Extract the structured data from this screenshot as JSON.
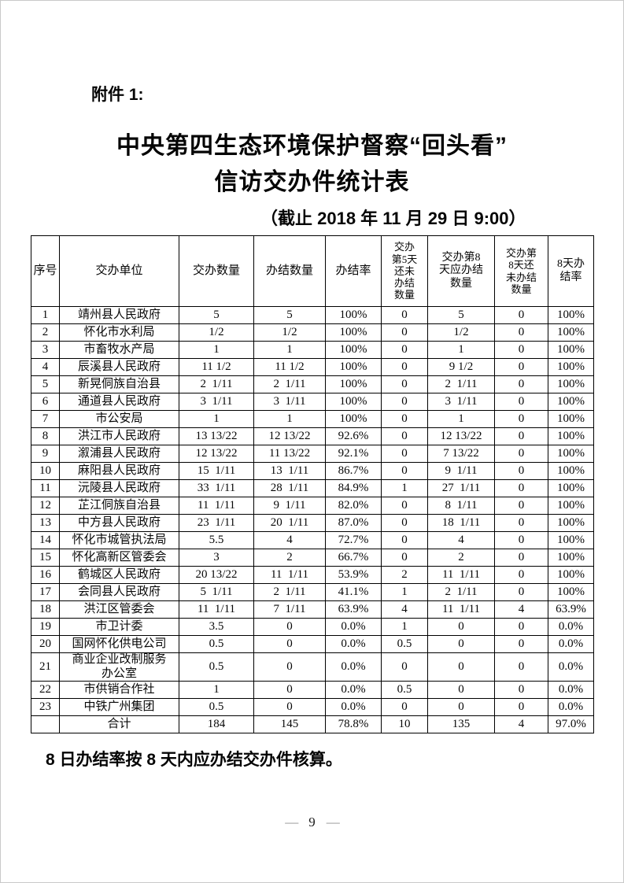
{
  "page": {
    "attachment_label": "附件 1:",
    "title_line1": "中央第四生态环境保护督察“回头看”",
    "title_line2": "信访交办件统计表",
    "subtitle": "（截止 2018 年 11 月 29 日 9:00）",
    "footnote": "8 日办结率按 8 天内应办结交办件核算。",
    "page_number": "9",
    "page_number_dash": "—"
  },
  "table": {
    "headers": [
      "序号",
      "交办单位",
      "交办数量",
      "办结数量",
      "办结率",
      "交办\n第5天\n还未\n办结\n数量",
      "交办第8\n天应办结\n数量",
      "交办第\n8天还\n未办结\n数量",
      "8天办\n结率"
    ],
    "rows": [
      [
        "1",
        "靖州县人民政府",
        "5",
        "5",
        "100%",
        "0",
        "5",
        "0",
        "100%"
      ],
      [
        "2",
        "怀化市水利局",
        "1/2",
        "1/2",
        "100%",
        "0",
        "1/2",
        "0",
        "100%"
      ],
      [
        "3",
        "市畜牧水产局",
        "1",
        "1",
        "100%",
        "0",
        "1",
        "0",
        "100%"
      ],
      [
        "4",
        "辰溪县人民政府",
        "11 1/2",
        "11 1/2",
        "100%",
        "0",
        "9 1/2",
        "0",
        "100%"
      ],
      [
        "5",
        "新晃侗族自治县",
        "2  1/11",
        "2  1/11",
        "100%",
        "0",
        "2  1/11",
        "0",
        "100%"
      ],
      [
        "6",
        "通道县人民政府",
        "3  1/11",
        "3  1/11",
        "100%",
        "0",
        "3  1/11",
        "0",
        "100%"
      ],
      [
        "7",
        "市公安局",
        "1",
        "1",
        "100%",
        "0",
        "1",
        "0",
        "100%"
      ],
      [
        "8",
        "洪江市人民政府",
        "13 13/22",
        "12 13/22",
        "92.6%",
        "0",
        "12 13/22",
        "0",
        "100%"
      ],
      [
        "9",
        "溆浦县人民政府",
        "12 13/22",
        "11 13/22",
        "92.1%",
        "0",
        "7 13/22",
        "0",
        "100%"
      ],
      [
        "10",
        "麻阳县人民政府",
        "15  1/11",
        "13  1/11",
        "86.7%",
        "0",
        "9  1/11",
        "0",
        "100%"
      ],
      [
        "11",
        "沅陵县人民政府",
        "33  1/11",
        "28  1/11",
        "84.9%",
        "1",
        "27  1/11",
        "0",
        "100%"
      ],
      [
        "12",
        "芷江侗族自治县",
        "11  1/11",
        "9  1/11",
        "82.0%",
        "0",
        "8  1/11",
        "0",
        "100%"
      ],
      [
        "13",
        "中方县人民政府",
        "23  1/11",
        "20  1/11",
        "87.0%",
        "0",
        "18  1/11",
        "0",
        "100%"
      ],
      [
        "14",
        "怀化市城管执法局",
        "5.5",
        "4",
        "72.7%",
        "0",
        "4",
        "0",
        "100%"
      ],
      [
        "15",
        "怀化高新区管委会",
        "3",
        "2",
        "66.7%",
        "0",
        "2",
        "0",
        "100%"
      ],
      [
        "16",
        "鹤城区人民政府",
        "20 13/22",
        "11  1/11",
        "53.9%",
        "2",
        "11  1/11",
        "0",
        "100%"
      ],
      [
        "17",
        "会同县人民政府",
        "5  1/11",
        "2  1/11",
        "41.1%",
        "1",
        "2  1/11",
        "0",
        "100%"
      ],
      [
        "18",
        "洪江区管委会",
        "11  1/11",
        "7  1/11",
        "63.9%",
        "4",
        "11  1/11",
        "4",
        "63.9%"
      ],
      [
        "19",
        "市卫计委",
        "3.5",
        "0",
        "0.0%",
        "1",
        "0",
        "0",
        "0.0%"
      ],
      [
        "20",
        "国网怀化供电公司",
        "0.5",
        "0",
        "0.0%",
        "0.5",
        "0",
        "0",
        "0.0%"
      ],
      [
        "21",
        "商业企业改制服务\n办公室",
        "0.5",
        "0",
        "0.0%",
        "0",
        "0",
        "0",
        "0.0%"
      ],
      [
        "22",
        "市供销合作社",
        "1",
        "0",
        "0.0%",
        "0.5",
        "0",
        "0",
        "0.0%"
      ],
      [
        "23",
        "中铁广州集团",
        "0.5",
        "0",
        "0.0%",
        "0",
        "0",
        "0",
        "0.0%"
      ]
    ],
    "total_row": [
      "",
      "合计",
      "184",
      "145",
      "78.8%",
      "10",
      "135",
      "4",
      "97.0%"
    ]
  }
}
